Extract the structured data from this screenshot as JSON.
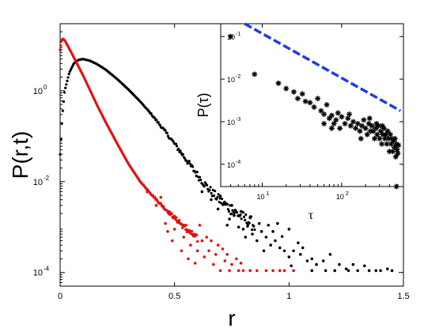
{
  "chart_data": [
    {
      "id": "main",
      "type": "scatter",
      "title": "",
      "xlabel": "r",
      "ylabel": "P(r,t)",
      "xlim": [
        0,
        1.5
      ],
      "ylim": [
        5e-05,
        30
      ],
      "yscale": "log",
      "x_ticks": [
        0,
        0.5,
        1,
        1.5
      ],
      "x_tick_labels": [
        "0",
        "0.5",
        "1",
        "1.5"
      ],
      "y_ticks": [
        0.0001,
        0.01,
        1
      ],
      "y_tick_labels": [
        {
          "base": "10",
          "exp": "-4"
        },
        {
          "base": "10",
          "exp": "-2"
        },
        {
          "base": "10",
          "exp": "0"
        }
      ],
      "grid": false,
      "legend": "none",
      "series": [
        {
          "color": "#000000",
          "marker": "dot",
          "curve": [
            [
              0.0,
              0.04
            ],
            [
              0.01,
              0.3
            ],
            [
              0.02,
              1.0
            ],
            [
              0.04,
              2.5
            ],
            [
              0.06,
              4.0
            ],
            [
              0.08,
              4.8
            ],
            [
              0.1,
              5.0
            ],
            [
              0.13,
              4.6
            ],
            [
              0.16,
              3.9
            ],
            [
              0.2,
              2.9
            ],
            [
              0.25,
              1.8
            ],
            [
              0.3,
              1.05
            ],
            [
              0.35,
              0.58
            ],
            [
              0.4,
              0.3
            ],
            [
              0.45,
              0.145
            ],
            [
              0.5,
              0.068
            ],
            [
              0.55,
              0.031
            ],
            [
              0.6,
              0.014
            ],
            [
              0.65,
              0.0068
            ],
            [
              0.7,
              0.0038
            ],
            [
              0.75,
              0.0024
            ],
            [
              0.8,
              0.0016
            ],
            [
              0.85,
              0.0011
            ]
          ],
          "scatter": [
            [
              0.62,
              0.006
            ],
            [
              0.66,
              0.004
            ],
            [
              0.69,
              0.0025
            ],
            [
              0.72,
              0.0032
            ],
            [
              0.74,
              0.0015
            ],
            [
              0.76,
              0.0018
            ],
            [
              0.78,
              0.001
            ],
            [
              0.8,
              0.0009
            ],
            [
              0.82,
              0.0011
            ],
            [
              0.84,
              0.0007
            ],
            [
              0.86,
              0.0005
            ],
            [
              0.88,
              0.0008
            ],
            [
              0.9,
              0.0006
            ],
            [
              0.92,
              0.0004
            ],
            [
              0.94,
              0.0005
            ],
            [
              0.96,
              0.00035
            ],
            [
              0.98,
              0.0003
            ],
            [
              1.0,
              0.00022
            ],
            [
              1.02,
              0.0003
            ],
            [
              1.05,
              0.00025
            ],
            [
              1.08,
              0.00018
            ],
            [
              1.1,
              0.0002
            ],
            [
              1.12,
              0.00015
            ],
            [
              1.15,
              0.00018
            ],
            [
              1.2,
              0.00011
            ],
            [
              1.22,
              0.00015
            ],
            [
              1.25,
              0.00012
            ],
            [
              1.3,
              0.00011
            ],
            [
              1.35,
              0.00011
            ],
            [
              1.4,
              0.00011
            ],
            [
              1.45,
              0.00011
            ],
            [
              0.7,
              0.0048
            ],
            [
              0.75,
              0.003
            ],
            [
              0.83,
              0.0016
            ],
            [
              0.87,
              0.0012
            ],
            [
              0.93,
              0.0008
            ],
            [
              0.97,
              0.00062
            ],
            [
              1.04,
              0.00045
            ],
            [
              1.06,
              0.00035
            ],
            [
              1.1,
              0.00011
            ],
            [
              1.16,
              0.00011
            ],
            [
              1.28,
              0.00015
            ],
            [
              1.38,
              0.00011
            ],
            [
              1.43,
              0.00012
            ],
            [
              0.79,
              0.0022
            ],
            [
              0.95,
              0.0012
            ],
            [
              1.0,
              0.0009
            ],
            [
              0.73,
              0.0011
            ],
            [
              0.81,
              0.0006
            ],
            [
              0.89,
              0.0003
            ],
            [
              0.91,
              0.0011
            ],
            [
              1.01,
              0.00014
            ],
            [
              1.18,
              0.00025
            ],
            [
              1.26,
              0.00011
            ],
            [
              1.33,
              0.00014
            ]
          ]
        },
        {
          "color": "#e01010",
          "marker": "dot",
          "curve": [
            [
              0.0,
              8.0
            ],
            [
              0.005,
              12.0
            ],
            [
              0.01,
              14.0
            ],
            [
              0.02,
              13.0
            ],
            [
              0.03,
              10.5
            ],
            [
              0.05,
              6.8
            ],
            [
              0.07,
              4.3
            ],
            [
              0.1,
              2.2
            ],
            [
              0.13,
              1.05
            ],
            [
              0.16,
              0.5
            ],
            [
              0.2,
              0.2
            ],
            [
              0.25,
              0.068
            ],
            [
              0.3,
              0.024
            ],
            [
              0.35,
              0.01
            ],
            [
              0.4,
              0.0052
            ],
            [
              0.45,
              0.0028
            ],
            [
              0.5,
              0.0016
            ],
            [
              0.55,
              0.0009
            ],
            [
              0.6,
              0.00055
            ]
          ],
          "scatter": [
            [
              0.38,
              0.006
            ],
            [
              0.42,
              0.003
            ],
            [
              0.44,
              0.0045
            ],
            [
              0.46,
              0.0012
            ],
            [
              0.48,
              0.002
            ],
            [
              0.5,
              0.0009
            ],
            [
              0.52,
              0.0014
            ],
            [
              0.54,
              0.0006
            ],
            [
              0.55,
              0.0011
            ],
            [
              0.57,
              0.0004
            ],
            [
              0.58,
              0.0007
            ],
            [
              0.6,
              0.0003
            ],
            [
              0.62,
              0.0005
            ],
            [
              0.63,
              0.00022
            ],
            [
              0.65,
              0.0003
            ],
            [
              0.67,
              0.00015
            ],
            [
              0.68,
              0.00025
            ],
            [
              0.7,
              0.00011
            ],
            [
              0.72,
              0.00018
            ],
            [
              0.74,
              0.00011
            ],
            [
              0.75,
              0.00015
            ],
            [
              0.78,
              0.00011
            ],
            [
              0.8,
              0.00011
            ],
            [
              0.83,
              0.00011
            ],
            [
              0.86,
              0.00011
            ],
            [
              0.9,
              0.00011
            ],
            [
              0.93,
              0.00011
            ],
            [
              0.96,
              0.00011
            ],
            [
              0.98,
              0.00011
            ],
            [
              1.02,
              0.00011
            ],
            [
              0.61,
              0.0011
            ],
            [
              0.64,
              0.0006
            ],
            [
              0.66,
              0.0005
            ],
            [
              0.69,
              0.0004
            ],
            [
              0.71,
              0.00033
            ],
            [
              0.73,
              0.00025
            ],
            [
              0.77,
              0.0002
            ],
            [
              0.79,
              0.00016
            ],
            [
              0.56,
              0.0002
            ],
            [
              0.59,
              0.00016
            ],
            [
              0.53,
              0.0003
            ],
            [
              0.47,
              0.0008
            ],
            [
              0.49,
              0.0005
            ]
          ]
        }
      ]
    },
    {
      "id": "inset",
      "type": "scatter",
      "title": "",
      "xlabel": "τ",
      "ylabel": "P(τ)",
      "xlim": [
        3,
        600
      ],
      "ylim": [
        3e-05,
        0.2
      ],
      "xscale": "log",
      "yscale": "log",
      "x_ticks": [
        10,
        100
      ],
      "x_tick_labels": [
        {
          "base": "10",
          "exp": "1"
        },
        {
          "base": "10",
          "exp": "2"
        }
      ],
      "y_ticks": [
        0.0001,
        0.001,
        0.01,
        0.1
      ],
      "y_tick_labels": [
        {
          "base": "10",
          "exp": "-4"
        },
        {
          "base": "10",
          "exp": "-3"
        },
        {
          "base": "10",
          "exp": "-2"
        },
        {
          "base": "10",
          "exp": "-1"
        }
      ],
      "grid": false,
      "legend": "none",
      "series": [
        {
          "color": "#000000",
          "marker": "asterisk",
          "points": [
            [
              4,
              0.1
            ],
            [
              8,
              0.013
            ],
            [
              16,
              0.008
            ],
            [
              20,
              0.006
            ],
            [
              25,
              0.005
            ],
            [
              28,
              0.0035
            ],
            [
              32,
              0.0045
            ],
            [
              35,
              0.003
            ],
            [
              40,
              0.0028
            ],
            [
              45,
              0.0022
            ],
            [
              50,
              0.0035
            ],
            [
              55,
              0.0018
            ],
            [
              60,
              0.0015
            ],
            [
              65,
              0.0025
            ],
            [
              70,
              0.0012
            ],
            [
              75,
              0.0014
            ],
            [
              80,
              0.0009
            ],
            [
              85,
              0.0011
            ],
            [
              90,
              0.0016
            ],
            [
              100,
              0.0013
            ],
            [
              110,
              0.0009
            ],
            [
              120,
              0.0012
            ],
            [
              130,
              0.0008
            ],
            [
              140,
              0.001
            ],
            [
              150,
              0.0007
            ],
            [
              160,
              0.0009
            ],
            [
              170,
              0.0006
            ],
            [
              180,
              0.0008
            ],
            [
              190,
              0.0011
            ],
            [
              200,
              0.0007
            ],
            [
              210,
              0.0005
            ],
            [
              220,
              0.0009
            ],
            [
              230,
              0.0006
            ],
            [
              240,
              0.0008
            ],
            [
              250,
              0.0006
            ],
            [
              260,
              0.0004
            ],
            [
              270,
              0.0007
            ],
            [
              280,
              0.0005
            ],
            [
              290,
              0.0008
            ],
            [
              300,
              0.0004
            ],
            [
              310,
              0.0006
            ],
            [
              320,
              0.0003
            ],
            [
              330,
              0.0005
            ],
            [
              340,
              0.0007
            ],
            [
              350,
              0.0004
            ],
            [
              360,
              0.0005
            ],
            [
              370,
              0.0003
            ],
            [
              380,
              0.0006
            ],
            [
              390,
              0.0004
            ],
            [
              400,
              0.0002
            ],
            [
              410,
              0.0005
            ],
            [
              420,
              0.0003
            ],
            [
              430,
              0.0004
            ],
            [
              440,
              0.0002
            ],
            [
              450,
              0.00035
            ],
            [
              460,
              0.00025
            ],
            [
              470,
              0.0004
            ],
            [
              480,
              0.00015
            ],
            [
              490,
              0.0003
            ],
            [
              500,
              0.00022
            ],
            [
              510,
              0.00018
            ],
            [
              520,
              0.00028
            ],
            [
              490,
              3e-05
            ],
            [
              60,
              0.0009
            ],
            [
              75,
              0.0007
            ],
            [
              95,
              0.0007
            ],
            [
              125,
              0.0015
            ],
            [
              175,
              0.0004
            ],
            [
              225,
              0.0012
            ],
            [
              275,
              0.0009
            ],
            [
              325,
              0.0008
            ]
          ]
        },
        {
          "color": "#1f3be0",
          "style": "dashed-line",
          "points": [
            [
              6,
              0.2
            ],
            [
              550,
              0.0018
            ]
          ]
        }
      ]
    }
  ]
}
